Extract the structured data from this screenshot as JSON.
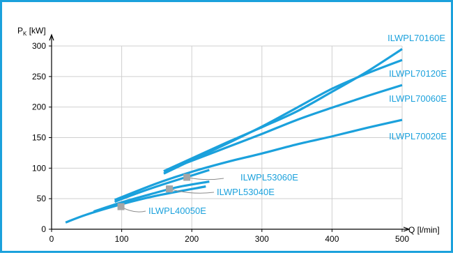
{
  "chart_data": {
    "type": "line",
    "ylabel": "P",
    "ylabel_subscript": "K",
    "ylabel_unit": " [kW]",
    "xlabel": "Q [l/min]",
    "xlim": [
      0,
      500
    ],
    "ylim": [
      0,
      300
    ],
    "x_ticks": [
      0,
      100,
      200,
      300,
      400,
      500
    ],
    "y_ticks": [
      0,
      50,
      100,
      150,
      200,
      250,
      300
    ],
    "grid": true,
    "line_color": "#1ba1dc",
    "marker_color": "#a6a6a6",
    "series": [
      {
        "name": "ILWPL70160E",
        "x": [
          160,
          200,
          250,
          300,
          350,
          400,
          450,
          500
        ],
        "y": [
          95,
          116,
          142,
          167,
          193,
          225,
          258,
          295
        ]
      },
      {
        "name": "ILWPL70120E",
        "x": [
          160,
          200,
          250,
          300,
          350,
          400,
          450,
          500
        ],
        "y": [
          91,
          113,
          140,
          168,
          199,
          230,
          255,
          277
        ]
      },
      {
        "name": "ILWPL70060E",
        "x": [
          160,
          200,
          250,
          300,
          350,
          400,
          450,
          500
        ],
        "y": [
          95,
          112,
          134,
          156,
          179,
          199,
          218,
          236
        ]
      },
      {
        "name": "ILWPL70020E",
        "x": [
          90,
          150,
          200,
          250,
          300,
          350,
          400,
          450,
          500
        ],
        "y": [
          48,
          75,
          94,
          110,
          124,
          139,
          152,
          166,
          179
        ]
      },
      {
        "name": "ILWPL53060E",
        "x": [
          90,
          120,
          150,
          180,
          200,
          225
        ],
        "y": [
          45,
          58,
          70,
          81,
          88,
          97
        ],
        "marker": [
          193,
          85
        ]
      },
      {
        "name": "ILWPL53040E",
        "x": [
          60,
          100,
          140,
          180,
          225
        ],
        "y": [
          29,
          44,
          57,
          69,
          78
        ],
        "marker": [
          168,
          66
        ]
      },
      {
        "name": "ILWPL40050E",
        "x": [
          20,
          50,
          100,
          150,
          220
        ],
        "y": [
          11,
          24,
          41,
          55,
          70
        ],
        "marker": [
          99,
          37
        ]
      }
    ]
  }
}
